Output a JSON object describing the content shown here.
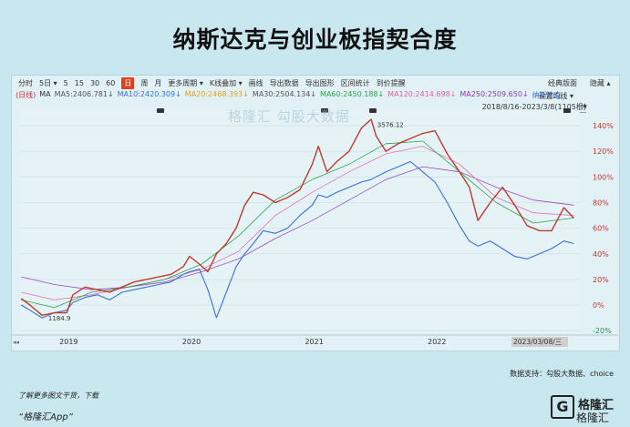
{
  "title": "纳斯达克与创业板指契合度",
  "toolbar": {
    "items": [
      "分时",
      "5日 ▾",
      "5",
      "15",
      "30",
      "60",
      "日",
      "周",
      "月",
      "更多周期 ▾",
      "K线叠加 ▾",
      "画线",
      "导出数据",
      "导出图形",
      "区间统计",
      "到价提醒"
    ],
    "active_index": 6,
    "right_items": [
      "经典版面",
      "隐藏 ▴"
    ]
  },
  "ma_legend": [
    {
      "text": "(日线)",
      "color": "#d4312d"
    },
    {
      "text": "MA",
      "color": "#333333"
    },
    {
      "text": "MA5:2406.781↓",
      "color": "#555555"
    },
    {
      "text": "MA10:2420.309↓",
      "color": "#3a6fd8"
    },
    {
      "text": "MA20:2468.393↓",
      "color": "#e0a020"
    },
    {
      "text": "MA30:2504.134↓",
      "color": "#555555"
    },
    {
      "text": "MA60:2450.188↓",
      "color": "#2ea04a"
    },
    {
      "text": "MA120:2414.698↓",
      "color": "#e060a0"
    },
    {
      "text": "MA250:2509.650↓",
      "color": "#8a3ab8"
    },
    {
      "text": "纳斯达克",
      "color": "#3a6fd8"
    }
  ],
  "settings_label": "设置均线 ▾",
  "date_range": "2018/8/16-2023/3/8(1105根)",
  "pin_icon": "★",
  "watermark": "格隆汇  勾股大数据",
  "source": "数据支持：勾股大数据、choice",
  "footer_note": "了解更多图文干货，下载",
  "footer_app": "“格隆汇App”",
  "logo": {
    "mark": "G",
    "name": "格隆汇",
    "sub": "格隆汇"
  },
  "chart_data": {
    "type": "line",
    "x_ticks": [
      "2019",
      "2020",
      "2021",
      "2022"
    ],
    "cursor_label": "2023/03/08/三",
    "y_ticks": [
      "140%",
      "120%",
      "100%",
      "80%",
      "60%",
      "40%",
      "20%",
      "0%",
      "-20%"
    ],
    "y_tick_values": [
      140,
      120,
      100,
      80,
      60,
      40,
      20,
      0,
      -20
    ],
    "ylim": [
      -22,
      150
    ],
    "xlim": [
      2018.62,
      2023.18
    ],
    "annotations": [
      {
        "text": "3576.12",
        "x": 2021.5,
        "y": 141
      },
      {
        "text": "1184.9",
        "x": 2018.82,
        "y": -10
      }
    ],
    "series": [
      {
        "name": "创业板指",
        "color": "#c0392b",
        "x": [
          2018.63,
          2018.7,
          2018.8,
          2018.9,
          2019.0,
          2019.05,
          2019.15,
          2019.25,
          2019.35,
          2019.45,
          2019.55,
          2019.65,
          2019.75,
          2019.85,
          2019.95,
          2020.0,
          2020.08,
          2020.15,
          2020.22,
          2020.3,
          2020.38,
          2020.45,
          2020.52,
          2020.6,
          2020.7,
          2020.8,
          2020.9,
          2021.0,
          2021.05,
          2021.12,
          2021.2,
          2021.3,
          2021.4,
          2021.48,
          2021.52,
          2021.6,
          2021.7,
          2021.8,
          2021.9,
          2022.0,
          2022.1,
          2022.2,
          2022.28,
          2022.35,
          2022.45,
          2022.55,
          2022.65,
          2022.75,
          2022.85,
          2022.95,
          2023.05,
          2023.13
        ],
        "y": [
          5,
          0,
          -8,
          -6,
          -6,
          8,
          14,
          12,
          10,
          14,
          18,
          20,
          22,
          24,
          30,
          38,
          32,
          26,
          40,
          48,
          60,
          78,
          88,
          86,
          80,
          84,
          90,
          110,
          124,
          104,
          112,
          120,
          138,
          145,
          132,
          120,
          126,
          130,
          134,
          136,
          118,
          104,
          92,
          66,
          80,
          92,
          78,
          62,
          58,
          58,
          76,
          68
        ]
      },
      {
        "name": "纳斯达克",
        "color": "#3a6fd8",
        "x": [
          2018.63,
          2018.7,
          2018.8,
          2018.9,
          2019.0,
          2019.05,
          2019.15,
          2019.25,
          2019.35,
          2019.45,
          2019.55,
          2019.65,
          2019.75,
          2019.85,
          2019.95,
          2020.0,
          2020.08,
          2020.15,
          2020.22,
          2020.3,
          2020.38,
          2020.45,
          2020.52,
          2020.6,
          2020.7,
          2020.8,
          2020.9,
          2021.0,
          2021.05,
          2021.12,
          2021.2,
          2021.3,
          2021.4,
          2021.48,
          2021.52,
          2021.6,
          2021.7,
          2021.8,
          2021.9,
          2022.0,
          2022.1,
          2022.2,
          2022.28,
          2022.35,
          2022.45,
          2022.55,
          2022.65,
          2022.75,
          2022.85,
          2022.95,
          2023.05,
          2023.13
        ],
        "y": [
          0,
          -4,
          -10,
          -6,
          -4,
          2,
          6,
          8,
          4,
          10,
          12,
          14,
          16,
          18,
          24,
          26,
          28,
          12,
          -10,
          10,
          30,
          40,
          48,
          58,
          56,
          60,
          70,
          78,
          86,
          84,
          88,
          92,
          96,
          98,
          100,
          104,
          108,
          112,
          104,
          96,
          80,
          62,
          50,
          46,
          50,
          44,
          38,
          36,
          40,
          44,
          50,
          48
        ]
      },
      {
        "name": "MA250",
        "color": "#9b4ac0",
        "x": [
          2018.63,
          2018.9,
          2019.2,
          2019.5,
          2019.8,
          2020.1,
          2020.4,
          2020.7,
          2021.0,
          2021.3,
          2021.6,
          2021.9,
          2022.2,
          2022.5,
          2022.8,
          2023.13
        ],
        "y": [
          22,
          16,
          12,
          14,
          18,
          26,
          36,
          52,
          66,
          82,
          98,
          108,
          104,
          92,
          82,
          78
        ]
      },
      {
        "name": "MA120",
        "color": "#e070b0",
        "x": [
          2018.63,
          2018.9,
          2019.2,
          2019.5,
          2019.8,
          2020.1,
          2020.4,
          2020.7,
          2021.0,
          2021.3,
          2021.6,
          2021.9,
          2022.2,
          2022.5,
          2022.8,
          2023.13
        ],
        "y": [
          10,
          4,
          8,
          14,
          20,
          28,
          42,
          70,
          88,
          104,
          118,
          124,
          110,
          84,
          72,
          70
        ]
      },
      {
        "name": "MA60",
        "color": "#2ea04a",
        "x": [
          2018.63,
          2018.9,
          2019.2,
          2019.5,
          2019.8,
          2020.1,
          2020.4,
          2020.7,
          2021.0,
          2021.3,
          2021.6,
          2021.9,
          2022.2,
          2022.5,
          2022.8,
          2023.13
        ],
        "y": [
          4,
          -2,
          10,
          14,
          20,
          32,
          54,
          82,
          98,
          110,
          126,
          128,
          104,
          80,
          64,
          68
        ]
      }
    ]
  }
}
